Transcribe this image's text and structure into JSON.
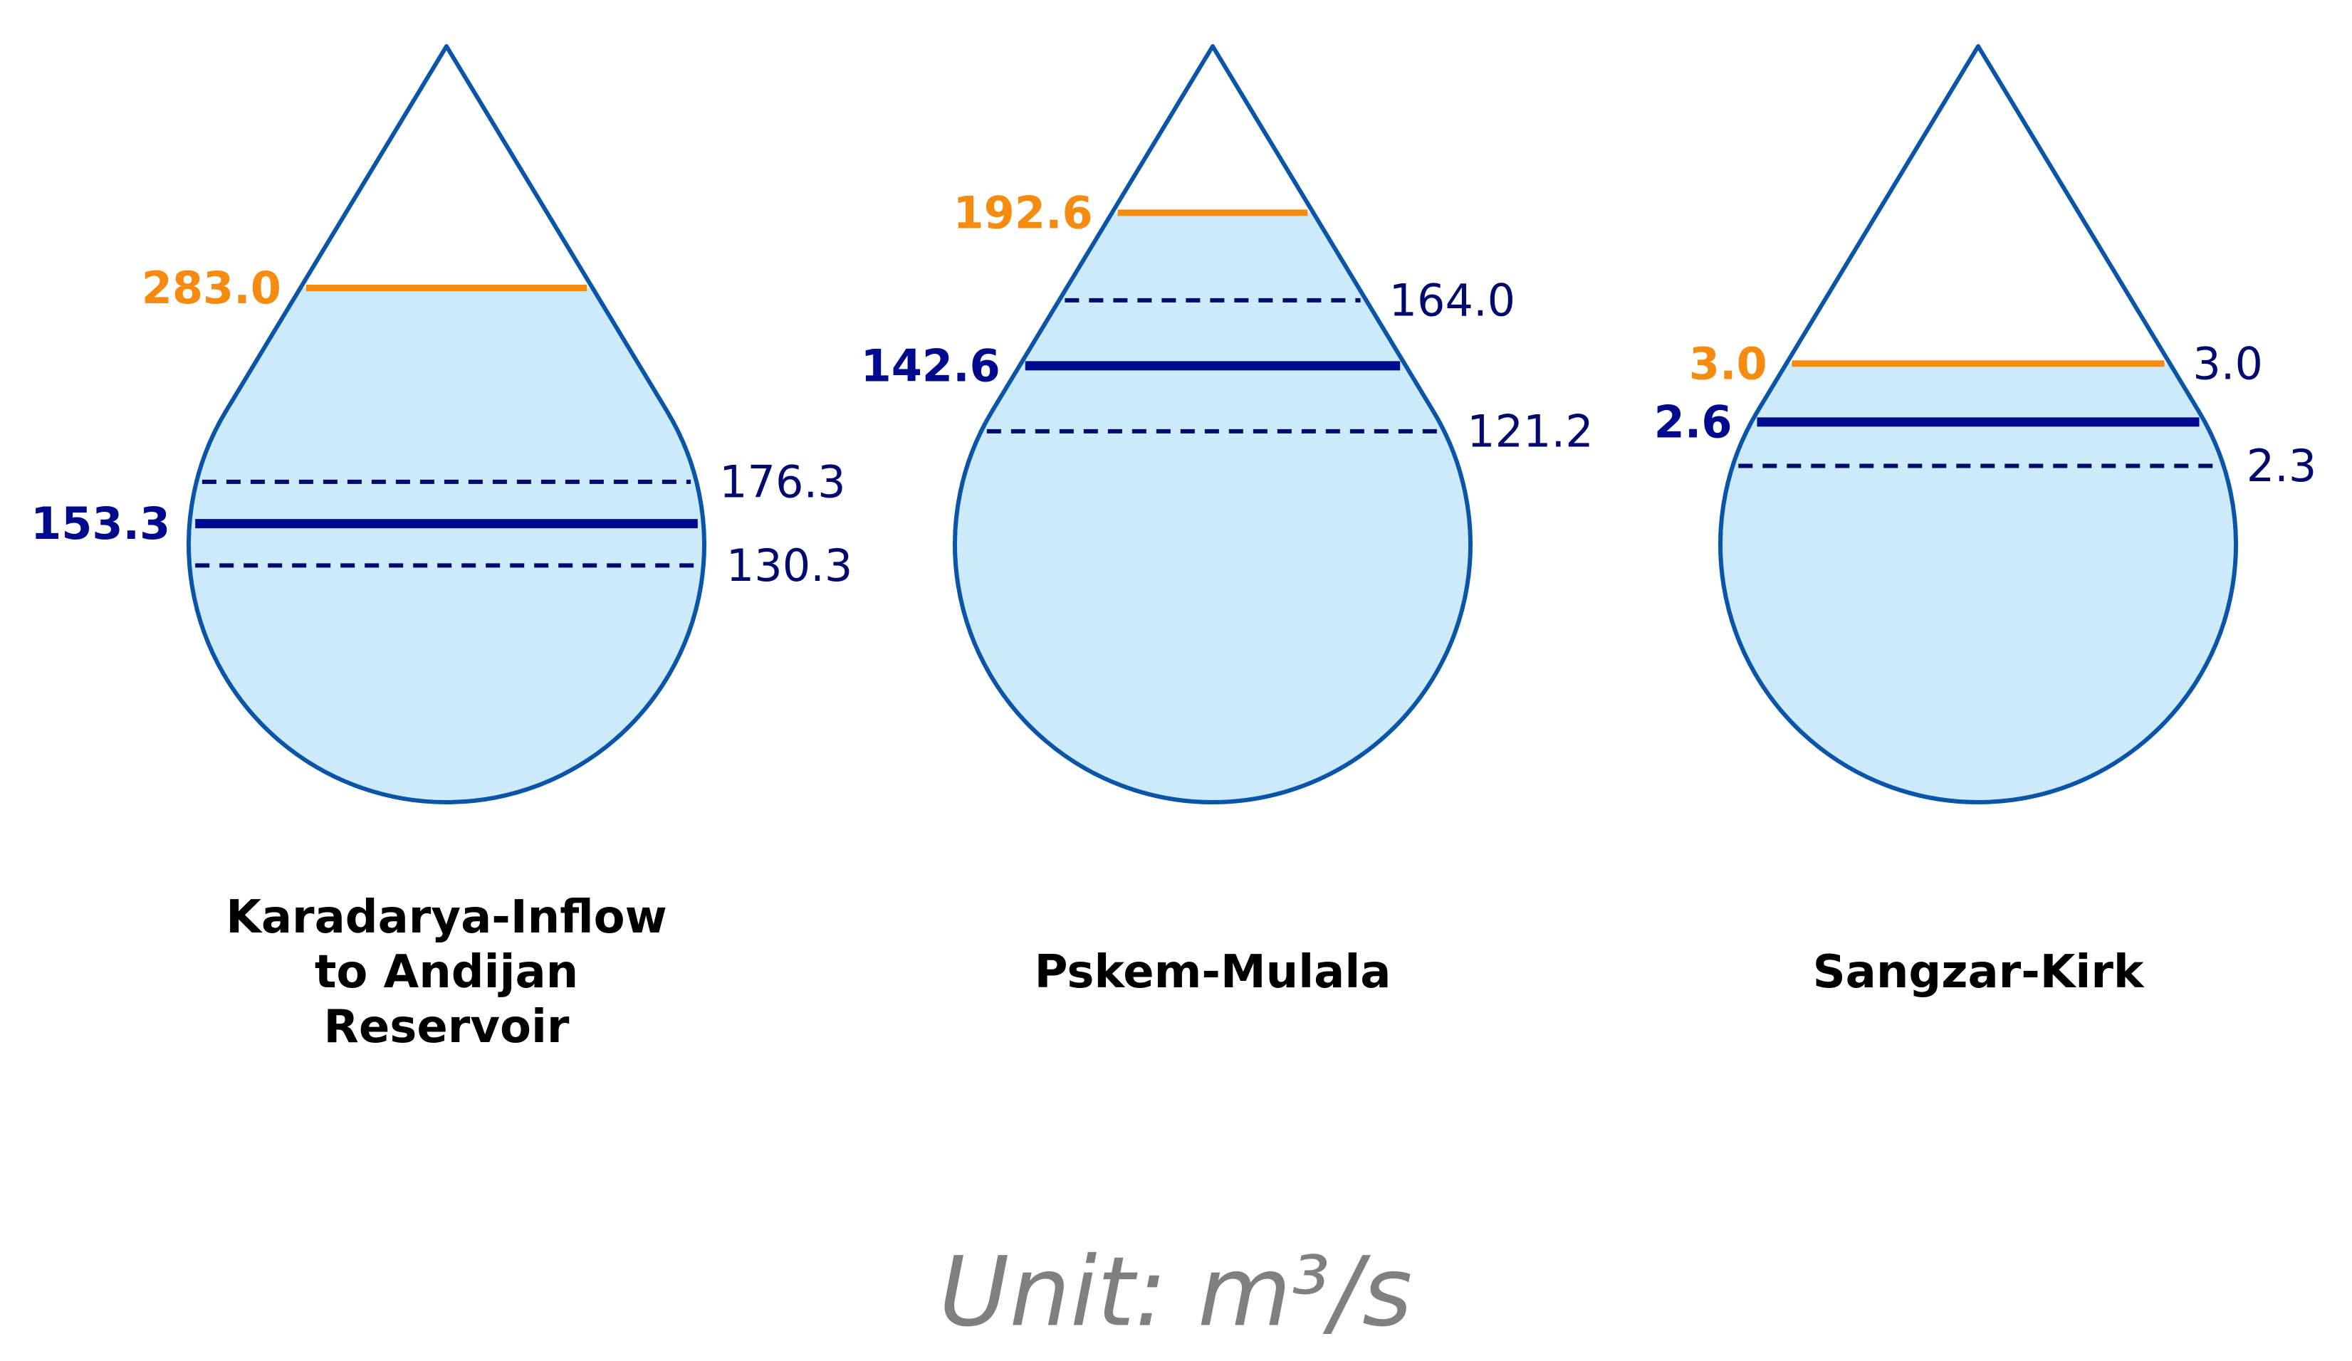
{
  "chart_data": {
    "type": "other",
    "unit_label": "Unit: m³/s",
    "colors": {
      "drop_outline": "#0a55a8",
      "water_fill": "#cdeafb",
      "current_line": "#f68b11",
      "mean_line": "#000a8c",
      "range_dash": "#000a6e",
      "title_text": "#000000",
      "unit_text": "#808080"
    },
    "drops": [
      {
        "title_lines": [
          "Karadarya-Inflow",
          "to Andijan",
          "Reservoir"
        ],
        "scale_max": 416,
        "current": {
          "value": 283.0,
          "label": "283.0"
        },
        "mean": {
          "value": 153.3,
          "label": "153.3"
        },
        "upper": {
          "value": 176.3,
          "label": "176.3"
        },
        "lower": {
          "value": 130.3,
          "label": "130.3"
        }
      },
      {
        "title_lines": [
          "Pskem-Mulala"
        ],
        "scale_max": 247,
        "current": {
          "value": 192.6,
          "label": "192.6"
        },
        "mean": {
          "value": 142.6,
          "label": "142.6"
        },
        "upper": {
          "value": 164.0,
          "label": "164.0"
        },
        "lower": {
          "value": 121.2,
          "label": "121.2"
        }
      },
      {
        "title_lines": [
          "Sangzar-Kirk"
        ],
        "scale_max": 5.17,
        "current": {
          "value": 3.0,
          "label": "3.0"
        },
        "mean": {
          "value": 2.6,
          "label": "2.6"
        },
        "upper": {
          "value": 3.0,
          "label": "3.0"
        },
        "lower": {
          "value": 2.3,
          "label": "2.3"
        }
      }
    ]
  }
}
